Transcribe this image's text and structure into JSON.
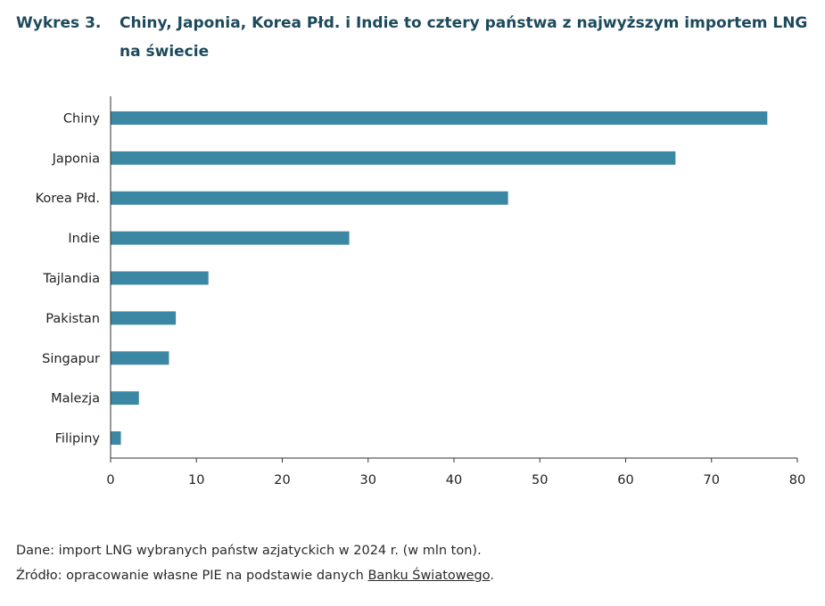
{
  "header": {
    "label": "Wykres 3.",
    "title": "Chiny, Japonia, Korea Płd. i Indie to cztery państwa z najwyższym importem LNG na świecie"
  },
  "footer": {
    "note": "Dane: import LNG wybranych państw azjatyckich w 2024 r. (w mln ton).",
    "source_prefix": "Źródło: opracowanie własne PIE na podstawie danych ",
    "source_link": "Banku Światowego",
    "source_suffix": "."
  },
  "colors": {
    "bar": "#3c87a3",
    "axis": "#333333",
    "title": "#1c4a5c"
  },
  "chart_data": {
    "type": "bar",
    "orientation": "horizontal",
    "categories": [
      "Chiny",
      "Japonia",
      "Korea Płd.",
      "Indie",
      "Tajlandia",
      "Pakistan",
      "Singapur",
      "Malezja",
      "Filipiny"
    ],
    "values": [
      76.5,
      65.8,
      46.3,
      27.8,
      11.4,
      7.6,
      6.8,
      3.3,
      1.2
    ],
    "xlim": [
      0,
      80
    ],
    "xticks": [
      0,
      10,
      20,
      30,
      40,
      50,
      60,
      70,
      80
    ],
    "grid": false,
    "legend": "none"
  }
}
